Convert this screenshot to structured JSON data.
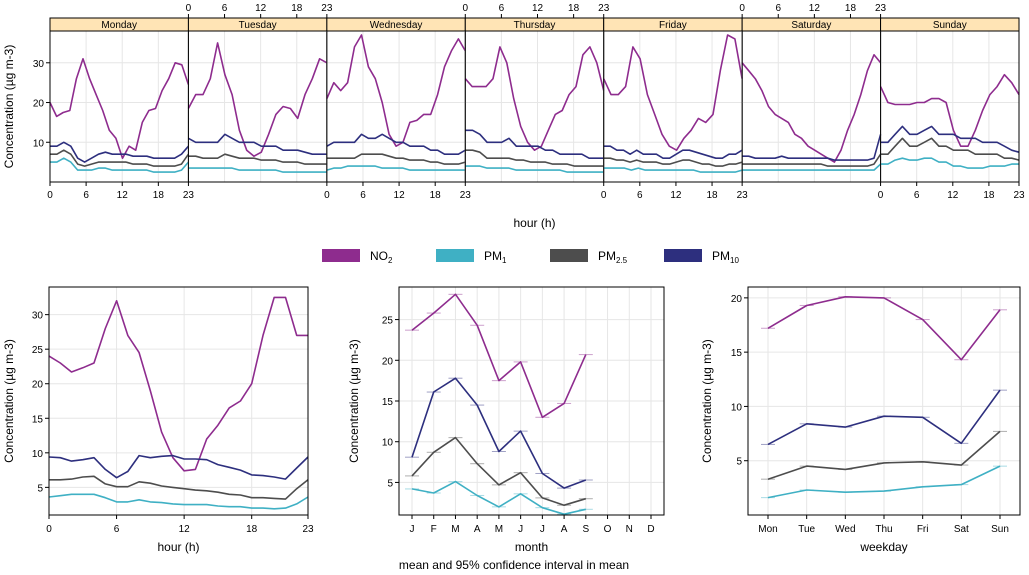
{
  "colors": {
    "no2": "#8e2c8e",
    "pm1": "#3fb0c4",
    "pm25": "#4d4d4d",
    "pm10": "#2d2f7e",
    "strip": "#ffe4b5",
    "grid": "#e6e6e6"
  },
  "legend": [
    {
      "key": "no2",
      "label": "NO",
      "sub": "2"
    },
    {
      "key": "pm1",
      "label": "PM",
      "sub": "1"
    },
    {
      "key": "pm25",
      "label": "PM",
      "sub": "2.5"
    },
    {
      "key": "pm10",
      "label": "PM",
      "sub": "10"
    }
  ],
  "caption": "mean and 95% confidence interval in mean",
  "chart_data": [
    {
      "type": "line",
      "title": "",
      "panels": [
        "Monday",
        "Tuesday",
        "Wednesday",
        "Thursday",
        "Friday",
        "Saturday",
        "Sunday"
      ],
      "xlabel": "hour (h)",
      "ylabel": "Concentration (µg m-3)",
      "xticks": [
        0,
        6,
        12,
        18,
        23
      ],
      "xtick_labels": [
        "0",
        "6",
        "12",
        "18",
        "23"
      ],
      "yticks": [
        10,
        20,
        30
      ],
      "ylim": [
        0,
        38
      ],
      "xlim": [
        0,
        23
      ],
      "series": [
        {
          "key": "no2",
          "values": [
            [
              20,
              16.5,
              17.5,
              18,
              26,
              31,
              26,
              22,
              18,
              13,
              11,
              6,
              9,
              8,
              15,
              18,
              18.5,
              23,
              26,
              30,
              29.5,
              24.5
            ],
            [
              18.5,
              22,
              22,
              26,
              35,
              27,
              22,
              13,
              8,
              6.5,
              7.5,
              12,
              17,
              19,
              18.5,
              16,
              22,
              26,
              31,
              30
            ],
            [
              21,
              25,
              23,
              25,
              34,
              37,
              29,
              26,
              20,
              12,
              9,
              10,
              15,
              15.5,
              17,
              17,
              22,
              29,
              33,
              36,
              33
            ],
            [
              26,
              24,
              24,
              24,
              26,
              34,
              30,
              21,
              14,
              10,
              8,
              9,
              13,
              17,
              18,
              22,
              24,
              32,
              34,
              30,
              23
            ],
            [
              26,
              22,
              22,
              24,
              34,
              31,
              22,
              17,
              12,
              9,
              8,
              11,
              13,
              16,
              15,
              17,
              28,
              37,
              36,
              26
            ],
            [
              30,
              28,
              26,
              23,
              19,
              17,
              16,
              15,
              12,
              11,
              9,
              8,
              7,
              6,
              5,
              8,
              13,
              17,
              22,
              28,
              32,
              30
            ],
            [
              24,
              20,
              19.5,
              19.5,
              19.5,
              20,
              20,
              21,
              21,
              20,
              13,
              9,
              9,
              13,
              18,
              22,
              24,
              27,
              25,
              22
            ]
          ]
        },
        {
          "key": "pm10",
          "values": [
            [
              9,
              9,
              10,
              9,
              6,
              5,
              6,
              7,
              7.5,
              7,
              7,
              7,
              6.5,
              6.5,
              6.5,
              6,
              6,
              6,
              6,
              7,
              9
            ],
            [
              11,
              10,
              10,
              10,
              10,
              12,
              11,
              10,
              10,
              10,
              9,
              9,
              9,
              8,
              8,
              8,
              7.5,
              7,
              7,
              7
            ],
            [
              9,
              10,
              10,
              10,
              10,
              12,
              11,
              11,
              12,
              11,
              10,
              10,
              9,
              9,
              9,
              8,
              8,
              7,
              7,
              7,
              8
            ],
            [
              13,
              13,
              12,
              10,
              10,
              10,
              11,
              9,
              9,
              9,
              9,
              8,
              8,
              7,
              7,
              7,
              7,
              6,
              6,
              6
            ],
            [
              9,
              9,
              8,
              8,
              7,
              8,
              7,
              7,
              7,
              6,
              6,
              7,
              8,
              8,
              7.5,
              7,
              6.5,
              6,
              6,
              7,
              7,
              8
            ],
            [
              6.5,
              6.5,
              6,
              6,
              6,
              6,
              6.5,
              6,
              6,
              6,
              6,
              6,
              6,
              6,
              5.5,
              5.5,
              5.5,
              5.5,
              5.5,
              5.5,
              6,
              12
            ],
            [
              10,
              10,
              12,
              14,
              12,
              12,
              13,
              14,
              12,
              12,
              12,
              11,
              11,
              11,
              10,
              10,
              10,
              9,
              8,
              7.5
            ]
          ]
        },
        {
          "key": "pm25",
          "values": [
            [
              7,
              7,
              8,
              7,
              4.5,
              4,
              4.5,
              5,
              5,
              5,
              5,
              5,
              4.5,
              4.5,
              4.5,
              4,
              4,
              4,
              4,
              4.5,
              7
            ],
            [
              6.5,
              6.5,
              6,
              6,
              6,
              7,
              6.5,
              6,
              6,
              6,
              5.5,
              5.5,
              5.5,
              5,
              5,
              5,
              4.5,
              4.5,
              4.5,
              4.5
            ],
            [
              6,
              6,
              6,
              6,
              6,
              7,
              7,
              7,
              7,
              6.5,
              6,
              6,
              5.5,
              5.5,
              5.5,
              5,
              5,
              4.5,
              4.5,
              4.5,
              5
            ],
            [
              8,
              8,
              7.5,
              6,
              6,
              6,
              6,
              5.5,
              5.5,
              5,
              5,
              5,
              4.5,
              4.5,
              4.5,
              4,
              4,
              4,
              4,
              4
            ],
            [
              6,
              6,
              5.5,
              5.5,
              5,
              5.5,
              5,
              5,
              5,
              4.5,
              4.5,
              5,
              5.5,
              5.5,
              5,
              4.5,
              4.5,
              4,
              4,
              4.5,
              4.5,
              5
            ],
            [
              4.5,
              4.5,
              4.5,
              4.5,
              4.5,
              4.5,
              4.5,
              4.5,
              4.5,
              4.5,
              4.5,
              4.5,
              4.5,
              4,
              4,
              4,
              4,
              4,
              4,
              4,
              4.5,
              7
            ],
            [
              7,
              7,
              9,
              11,
              9,
              9,
              10,
              11,
              9,
              9,
              8,
              8,
              8,
              7,
              7,
              7,
              7,
              6,
              6,
              5.5
            ]
          ]
        },
        {
          "key": "pm1",
          "values": [
            [
              5,
              5,
              6,
              5,
              3,
              3,
              3,
              3.5,
              3.5,
              3,
              3,
              3,
              3,
              3,
              3,
              2.5,
              2.5,
              2.5,
              2.5,
              3,
              5
            ],
            [
              3.5,
              3.5,
              3.5,
              3.5,
              3.5,
              3.5,
              3.5,
              3,
              3,
              3,
              3,
              3,
              3,
              2.5,
              2.5,
              2.5,
              2.5,
              2.5,
              2.5,
              2.5
            ],
            [
              3,
              3.5,
              3.5,
              4,
              4,
              4,
              4,
              4,
              3.5,
              3.5,
              3.5,
              3.5,
              3,
              3,
              3,
              3,
              3,
              3,
              3,
              3,
              3
            ],
            [
              4,
              4,
              4,
              3.5,
              3.5,
              3.5,
              3.5,
              3,
              3,
              3,
              3,
              3,
              3,
              3,
              2.5,
              2.5,
              2.5,
              2.5,
              2.5,
              2.5
            ],
            [
              3.5,
              3.5,
              3.5,
              3.5,
              3,
              3.5,
              3,
              3,
              3,
              3,
              3,
              3,
              3,
              3,
              2.5,
              2.5,
              2.5,
              2.5,
              2.5,
              2.5,
              3
            ],
            [
              3,
              3,
              3,
              3,
              3,
              3,
              3,
              3,
              3,
              3,
              3,
              3,
              3,
              3,
              3,
              3,
              3,
              3,
              3,
              3,
              3,
              4.5
            ],
            [
              4.5,
              4.5,
              5.5,
              6,
              5.5,
              5.5,
              6,
              6,
              5,
              5,
              4,
              4,
              3.5,
              3.5,
              3.5,
              4,
              4,
              4,
              4.5,
              4.5
            ]
          ]
        }
      ]
    },
    {
      "type": "line",
      "title": "",
      "xlabel": "hour (h)",
      "ylabel": "Concentration (µg m-3)",
      "x": [
        0,
        1,
        2,
        3,
        4,
        5,
        6,
        7,
        8,
        9,
        10,
        11,
        12,
        13,
        14,
        15,
        16,
        17,
        18,
        19,
        20,
        21,
        22,
        23
      ],
      "xticks": [
        0,
        6,
        12,
        18,
        23
      ],
      "xtick_labels": [
        "0",
        "6",
        "12",
        "18",
        "23"
      ],
      "yticks": [
        5,
        10,
        15,
        20,
        25,
        30
      ],
      "ylim": [
        1,
        34
      ],
      "xlim": [
        0,
        23
      ],
      "series": [
        {
          "key": "no2",
          "values": [
            24,
            23,
            21.7,
            22.3,
            23,
            28,
            32,
            27,
            24.5,
            19,
            13,
            9.3,
            7.4,
            7.6,
            12,
            14,
            16.5,
            17.5,
            20,
            27,
            32.5,
            32.5,
            27,
            27
          ]
        },
        {
          "key": "pm10",
          "values": [
            9.4,
            9.3,
            8.8,
            9,
            9.3,
            7.6,
            6.4,
            7.3,
            9.6,
            9.3,
            9.5,
            9.6,
            9.1,
            9.1,
            9,
            8.3,
            7.9,
            7.5,
            6.8,
            6.7,
            6.5,
            6.2,
            7.8,
            9.4
          ]
        },
        {
          "key": "pm25",
          "values": [
            6.1,
            6.1,
            6.2,
            6.5,
            6.6,
            5.5,
            5.1,
            5.1,
            5.8,
            5.6,
            5.2,
            5,
            4.8,
            4.6,
            4.5,
            4.3,
            4,
            3.9,
            3.5,
            3.5,
            3.4,
            3.3,
            4.8,
            6.1
          ]
        },
        {
          "key": "pm1",
          "values": [
            3.6,
            3.8,
            4,
            4,
            4,
            3.5,
            2.9,
            2.9,
            3.2,
            2.9,
            2.8,
            2.6,
            2.5,
            2.5,
            2.5,
            2.3,
            2.2,
            2.2,
            2,
            2,
            1.9,
            2,
            2.6,
            3.6
          ]
        }
      ]
    },
    {
      "type": "line",
      "title": "",
      "xlabel": "month",
      "ylabel": "Concentration (µg m-3)",
      "categories": [
        "J",
        "F",
        "M",
        "A",
        "M",
        "J",
        "J",
        "A",
        "S",
        "O",
        "N",
        "D"
      ],
      "yticks": [
        5,
        10,
        15,
        20,
        25
      ],
      "ylim": [
        1,
        29
      ],
      "series": [
        {
          "key": "no2",
          "values": [
            23.7,
            25.8,
            28.1,
            24.3,
            17.5,
            19.8,
            13,
            14.7,
            20.7,
            null,
            null,
            null
          ]
        },
        {
          "key": "pm10",
          "values": [
            8.1,
            16.1,
            17.8,
            14.5,
            8.8,
            11.3,
            6.1,
            4.3,
            5.3,
            null,
            null,
            null
          ]
        },
        {
          "key": "pm25",
          "values": [
            5.8,
            8.7,
            10.5,
            7.3,
            4.7,
            6.2,
            3.1,
            2.2,
            3,
            null,
            null,
            null
          ]
        },
        {
          "key": "pm1",
          "values": [
            4.2,
            3.7,
            5.1,
            3.4,
            2,
            3.6,
            1.9,
            1.1,
            1.7,
            null,
            null,
            null
          ]
        }
      ]
    },
    {
      "type": "line",
      "title": "",
      "xlabel": "weekday",
      "ylabel": "Concentration (µg m-3)",
      "categories": [
        "Mon",
        "Tue",
        "Wed",
        "Thu",
        "Fri",
        "Sat",
        "Sun"
      ],
      "yticks": [
        5,
        10,
        15,
        20
      ],
      "ylim": [
        0,
        21
      ],
      "series": [
        {
          "key": "no2",
          "values": [
            17.2,
            19.3,
            20.1,
            20,
            18,
            14.3,
            18.9
          ]
        },
        {
          "key": "pm10",
          "values": [
            6.5,
            8.4,
            8.1,
            9.1,
            9,
            6.6,
            11.5
          ]
        },
        {
          "key": "pm25",
          "values": [
            3.3,
            4.5,
            4.2,
            4.8,
            4.9,
            4.6,
            7.7
          ]
        },
        {
          "key": "pm1",
          "values": [
            1.6,
            2.3,
            2.1,
            2.2,
            2.6,
            2.8,
            4.5
          ]
        }
      ]
    }
  ]
}
